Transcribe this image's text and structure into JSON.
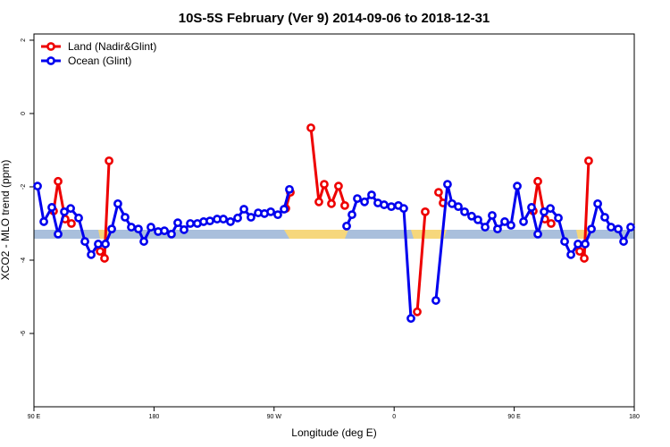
{
  "chart_data": {
    "type": "line",
    "title": "10S-5S February (Ver 9)   2014-09-06 to 2018-12-31",
    "x_label": "Longitude (deg E)",
    "y_label": "XCO2 - MLO trend (ppm)",
    "xlim": [
      90,
      540
    ],
    "ylim": [
      -8,
      2.17
    ],
    "xticks": [
      {
        "value": 90,
        "label": "90 E"
      },
      {
        "value": 180,
        "label": "180"
      },
      {
        "value": 270,
        "label": "90 W"
      },
      {
        "value": 360,
        "label": "0"
      },
      {
        "value": 450,
        "label": "90 E"
      },
      {
        "value": 540,
        "label": "180"
      }
    ],
    "yticks": [
      -6,
      -4,
      -2,
      0,
      2
    ],
    "legend": "topleft",
    "series": [
      {
        "name": "Land (Nadir&Glint)",
        "color": "#ee0000",
        "x": [
          104.7,
          108.1,
          113.4,
          118.1,
          129,
          139.6,
          142.9,
          146.3,
          210,
          278.8,
          282.2,
          290,
          297.6,
          303.6,
          307.6,
          313.0,
          318.3,
          323.0,
          350,
          377.3,
          383.3,
          388,
          393.3,
          396.7,
          430,
          464.3,
          467.7,
          473.0,
          477.7,
          490,
          499.1,
          502.5,
          505.8
        ],
        "values": [
          -2.66,
          -1.85,
          -2.88,
          -3.0,
          null,
          -3.76,
          -3.95,
          -1.29,
          null,
          -2.59,
          -2.15,
          null,
          -0.39,
          -2.41,
          -1.93,
          -2.46,
          -1.98,
          -2.51,
          null,
          -5.41,
          -2.68,
          null,
          -2.15,
          -2.44,
          null,
          -2.66,
          -1.85,
          -2.88,
          -3.0,
          null,
          -3.76,
          -3.95,
          -1.29
        ]
      },
      {
        "name": "Ocean (Glint)",
        "color": "#0000ee",
        "x": [
          92.7,
          97.4,
          103.4,
          108.1,
          112.8,
          117.5,
          123.5,
          128.2,
          132.9,
          138.2,
          143.6,
          148.3,
          152.9,
          158.3,
          163.0,
          168.3,
          172.4,
          177.7,
          183.1,
          187.8,
          193.1,
          197.8,
          202.5,
          207.2,
          212.5,
          217.2,
          221.9,
          227.3,
          232.0,
          237.3,
          242.7,
          247.4,
          252.7,
          258.1,
          262.8,
          267.5,
          272.8,
          277.5,
          281.5,
          300,
          324.4,
          328.4,
          332.4,
          337.8,
          343.1,
          347.8,
          352.5,
          357.9,
          363.2,
          367.2,
          372.6,
          380,
          391.3,
          400.0,
          403.4,
          408.1,
          412.8,
          418.1,
          422.8,
          428.2,
          433.5,
          437.5,
          442.9,
          447.6,
          452.3,
          457.0,
          463.0,
          467.7,
          472.4,
          477.1,
          483.1,
          487.8,
          492.5,
          497.8,
          503.2,
          507.9,
          512.6,
          517.9,
          522.6,
          528.0,
          532.0,
          537.3
        ],
        "values": [
          -1.98,
          -2.95,
          -2.56,
          -3.29,
          -2.68,
          -2.59,
          -2.85,
          -3.49,
          -3.85,
          -3.56,
          -3.56,
          -3.15,
          -2.46,
          -2.83,
          -3.1,
          -3.15,
          -3.49,
          -3.1,
          -3.22,
          -3.2,
          -3.29,
          -2.98,
          -3.17,
          -3.0,
          -3.0,
          -2.95,
          -2.93,
          -2.88,
          -2.88,
          -2.95,
          -2.85,
          -2.61,
          -2.83,
          -2.71,
          -2.73,
          -2.68,
          -2.76,
          -2.61,
          -2.07,
          null,
          -3.07,
          -2.76,
          -2.32,
          -2.41,
          -2.22,
          -2.44,
          -2.49,
          -2.54,
          -2.51,
          -2.59,
          -5.59,
          null,
          -5.1,
          -1.93,
          -2.46,
          -2.54,
          -2.68,
          -2.8,
          -2.9,
          -3.1,
          -2.78,
          -3.15,
          -2.95,
          -3.05,
          -1.98,
          -2.95,
          -2.56,
          -3.29,
          -2.68,
          -2.59,
          -2.85,
          -3.49,
          -3.85,
          -3.56,
          -3.56,
          -3.15,
          -2.46,
          -2.83,
          -3.1,
          -3.15,
          -3.49,
          -3.1
        ]
      }
    ]
  }
}
